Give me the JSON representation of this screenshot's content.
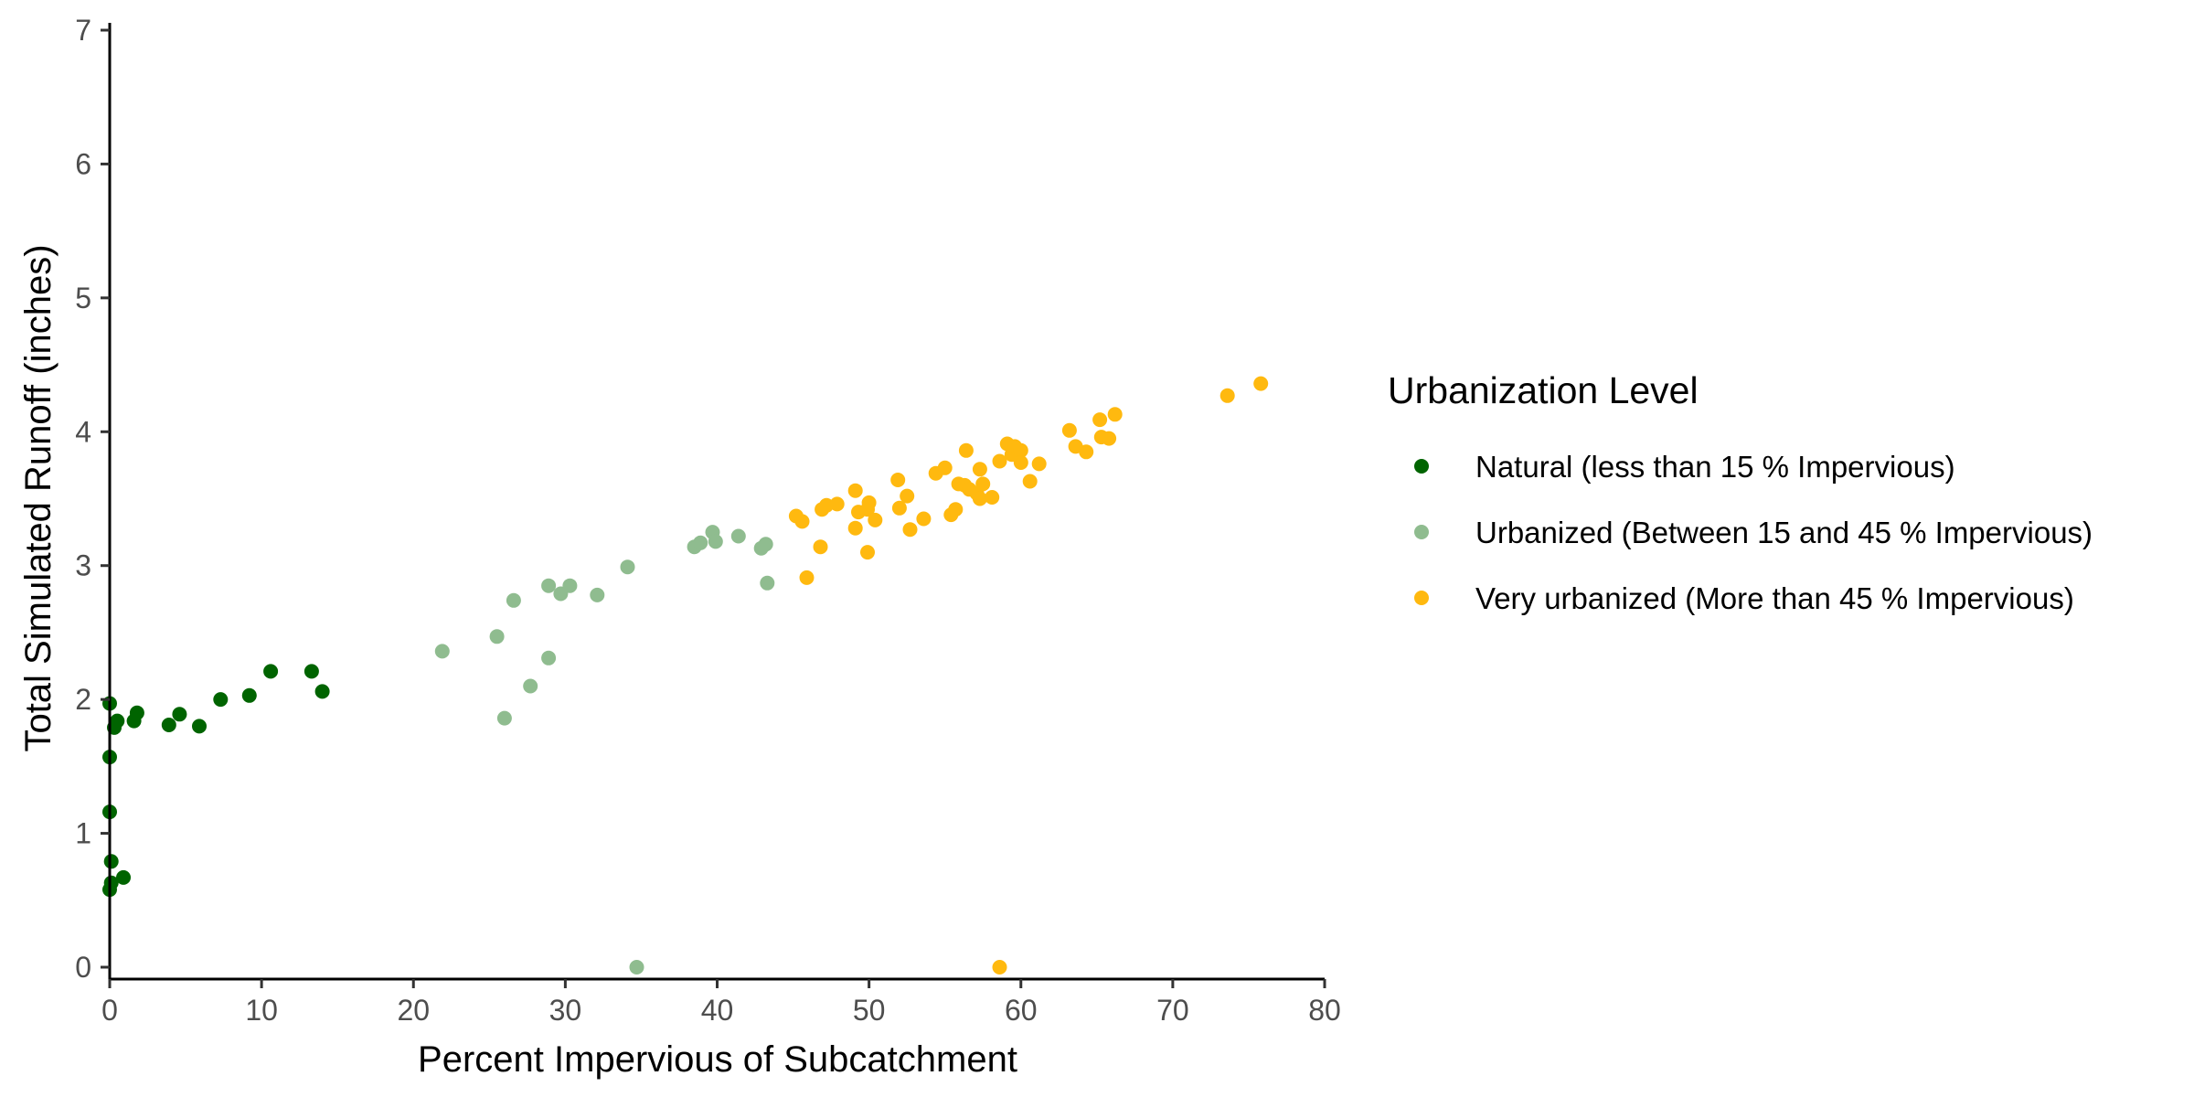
{
  "chart_data": {
    "type": "scatter",
    "xlabel": "Percent Impervious of Subcatchment",
    "ylabel": "Total Simulated Runoff (inches)",
    "xlim": [
      0,
      80
    ],
    "ylim": [
      0,
      7
    ],
    "x_ticks": [
      0,
      10,
      20,
      30,
      40,
      50,
      60,
      70,
      80
    ],
    "y_ticks": [
      0,
      1,
      2,
      3,
      4,
      5,
      6,
      7
    ],
    "grid": false,
    "legend": {
      "title": "Urbanization Level",
      "position": "right"
    },
    "series": [
      {
        "name": "Natural (less than 15 % Impervious)",
        "color": "#006400",
        "points": [
          [
            0.0,
            1.97
          ],
          [
            0.0,
            1.57
          ],
          [
            0.0,
            1.16
          ],
          [
            0.1,
            0.79
          ],
          [
            0.0,
            0.58
          ],
          [
            0.1,
            0.63
          ],
          [
            0.3,
            1.79
          ],
          [
            0.5,
            1.84
          ],
          [
            0.9,
            0.67
          ],
          [
            1.6,
            1.84
          ],
          [
            1.8,
            1.9
          ],
          [
            3.9,
            1.81
          ],
          [
            4.6,
            1.89
          ],
          [
            5.9,
            1.8
          ],
          [
            7.3,
            2.0
          ],
          [
            9.2,
            2.03
          ],
          [
            10.6,
            2.21
          ],
          [
            13.3,
            2.21
          ],
          [
            14.0,
            2.06
          ]
        ]
      },
      {
        "name": "Urbanized (Between 15 and 45 % Impervious)",
        "color": "#8fbc8f",
        "points": [
          [
            21.9,
            2.36
          ],
          [
            25.5,
            2.47
          ],
          [
            26.0,
            1.86
          ],
          [
            26.6,
            2.74
          ],
          [
            27.7,
            2.1
          ],
          [
            28.9,
            2.85
          ],
          [
            28.9,
            2.31
          ],
          [
            29.7,
            2.79
          ],
          [
            30.3,
            2.85
          ],
          [
            32.1,
            2.78
          ],
          [
            34.1,
            2.99
          ],
          [
            34.7,
            0.0
          ],
          [
            38.5,
            3.14
          ],
          [
            38.9,
            3.17
          ],
          [
            39.7,
            3.25
          ],
          [
            39.9,
            3.18
          ],
          [
            41.4,
            3.22
          ],
          [
            42.9,
            3.13
          ],
          [
            43.2,
            3.16
          ],
          [
            43.3,
            2.87
          ]
        ]
      },
      {
        "name": "Very urbanized (More than 45 % Impervious)",
        "color": "#ffb90f",
        "points": [
          [
            45.2,
            3.37
          ],
          [
            45.6,
            3.33
          ],
          [
            45.9,
            2.91
          ],
          [
            46.8,
            3.14
          ],
          [
            46.9,
            3.42
          ],
          [
            47.2,
            3.45
          ],
          [
            47.9,
            3.46
          ],
          [
            49.1,
            3.56
          ],
          [
            49.1,
            3.28
          ],
          [
            49.3,
            3.4
          ],
          [
            49.9,
            3.42
          ],
          [
            50.0,
            3.47
          ],
          [
            49.9,
            3.1
          ],
          [
            50.4,
            3.34
          ],
          [
            51.9,
            3.64
          ],
          [
            52.0,
            3.43
          ],
          [
            52.5,
            3.52
          ],
          [
            52.7,
            3.27
          ],
          [
            53.6,
            3.35
          ],
          [
            54.4,
            3.69
          ],
          [
            55.0,
            3.73
          ],
          [
            55.4,
            3.38
          ],
          [
            55.7,
            3.42
          ],
          [
            55.9,
            3.61
          ],
          [
            56.3,
            3.6
          ],
          [
            56.4,
            3.86
          ],
          [
            56.6,
            3.57
          ],
          [
            57.1,
            3.54
          ],
          [
            57.3,
            3.72
          ],
          [
            57.3,
            3.5
          ],
          [
            57.5,
            3.61
          ],
          [
            58.1,
            3.51
          ],
          [
            58.6,
            3.78
          ],
          [
            58.6,
            0.0
          ],
          [
            59.1,
            3.91
          ],
          [
            59.4,
            3.83
          ],
          [
            59.6,
            3.89
          ],
          [
            60.0,
            3.86
          ],
          [
            60.0,
            3.77
          ],
          [
            60.6,
            3.63
          ],
          [
            61.2,
            3.76
          ],
          [
            63.2,
            4.01
          ],
          [
            63.6,
            3.89
          ],
          [
            64.3,
            3.85
          ],
          [
            65.2,
            4.09
          ],
          [
            65.3,
            3.96
          ],
          [
            65.8,
            3.95
          ],
          [
            66.2,
            4.13
          ],
          [
            73.6,
            4.27
          ],
          [
            75.8,
            4.36
          ]
        ]
      }
    ]
  }
}
